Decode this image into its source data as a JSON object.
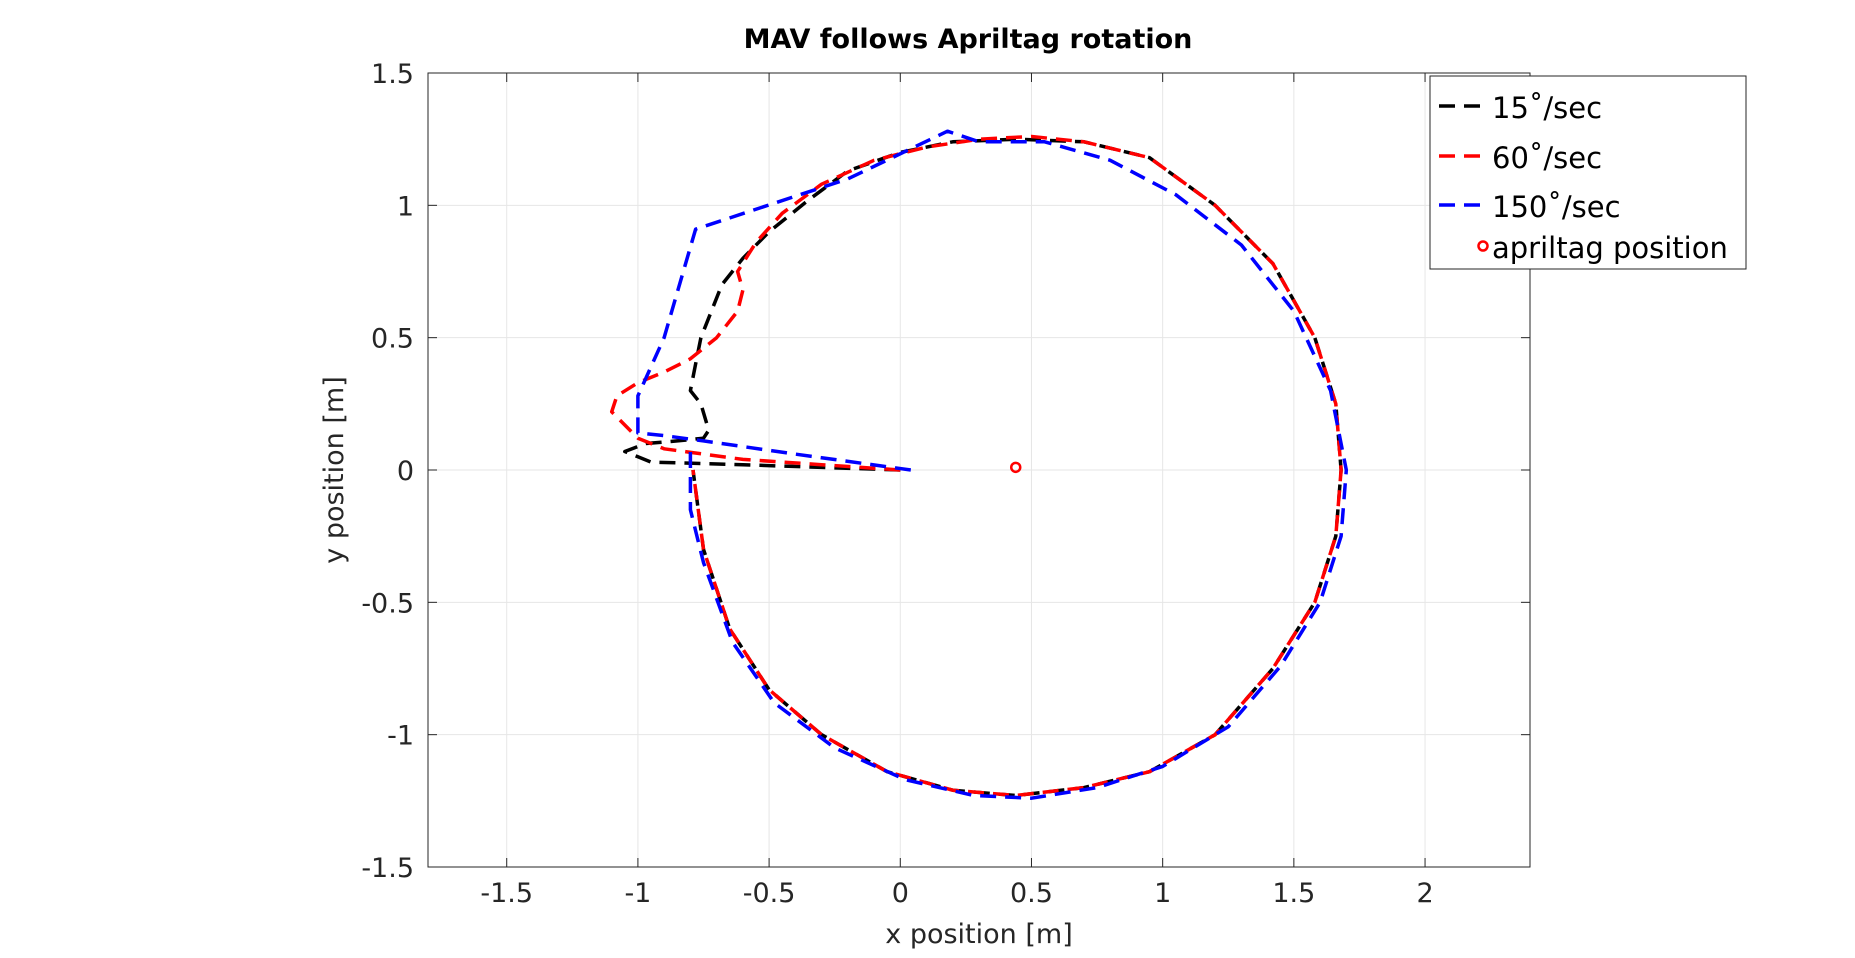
{
  "chart_data": {
    "type": "line",
    "title": "MAV follows Apriltag rotation",
    "xlabel": "x position [m]",
    "ylabel": "y position [m]",
    "xlim": [
      -1.8,
      2.4
    ],
    "ylim": [
      -1.5,
      1.5
    ],
    "xticks": [
      -1.5,
      -1,
      -0.5,
      0,
      0.5,
      1,
      1.5,
      2
    ],
    "xtick_labels": [
      "-1.5",
      "-1",
      "-0.5",
      "0",
      "0.5",
      "1",
      "1.5",
      "2"
    ],
    "yticks": [
      -1.5,
      -1,
      -0.5,
      0,
      0.5,
      1,
      1.5
    ],
    "ytick_labels": [
      "-1.5",
      "-1",
      "-0.5",
      "0",
      "0.5",
      "1",
      "1.5"
    ],
    "grid": true,
    "legend_position": "top-right",
    "series": [
      {
        "name": "15˚/sec",
        "color": "#000000",
        "style": "dashed",
        "x": [
          0.0,
          -0.3,
          -0.6,
          -0.95,
          -1.0,
          -1.05,
          -0.97,
          -0.85,
          -0.75,
          -0.73,
          -0.76,
          -0.8,
          -0.78,
          -0.76,
          -0.72,
          -0.68,
          -0.6,
          -0.5,
          -0.35,
          -0.2,
          0.0,
          0.2,
          0.44,
          0.7,
          0.95,
          1.2,
          1.42,
          1.58,
          1.66,
          1.68,
          1.66,
          1.58,
          1.42,
          1.2,
          0.95,
          0.7,
          0.44,
          0.2,
          -0.05,
          -0.3,
          -0.5,
          -0.65,
          -0.75,
          -0.79
        ],
        "y": [
          0.0,
          0.01,
          0.02,
          0.03,
          0.05,
          0.07,
          0.1,
          0.11,
          0.12,
          0.15,
          0.25,
          0.3,
          0.4,
          0.5,
          0.6,
          0.7,
          0.8,
          0.9,
          1.02,
          1.13,
          1.2,
          1.24,
          1.25,
          1.24,
          1.18,
          1.0,
          0.78,
          0.5,
          0.25,
          0.0,
          -0.25,
          -0.5,
          -0.75,
          -1.0,
          -1.14,
          -1.2,
          -1.23,
          -1.21,
          -1.14,
          -1.0,
          -0.83,
          -0.6,
          -0.3,
          0.0
        ]
      },
      {
        "name": "60˚/sec",
        "color": "#ff0000",
        "style": "dashed",
        "x": [
          0.0,
          -0.3,
          -0.6,
          -0.9,
          -1.0,
          -1.1,
          -1.08,
          -1.0,
          -0.9,
          -0.8,
          -0.7,
          -0.62,
          -0.6,
          -0.62,
          -0.55,
          -0.45,
          -0.3,
          -0.1,
          0.1,
          0.3,
          0.5,
          0.7,
          0.95,
          1.2,
          1.42,
          1.58,
          1.66,
          1.68,
          1.66,
          1.58,
          1.42,
          1.2,
          0.95,
          0.7,
          0.44,
          0.2,
          -0.05,
          -0.3,
          -0.5,
          -0.65,
          -0.75,
          -0.79
        ],
        "y": [
          0.0,
          0.02,
          0.04,
          0.08,
          0.12,
          0.22,
          0.28,
          0.33,
          0.37,
          0.42,
          0.5,
          0.6,
          0.68,
          0.75,
          0.86,
          0.97,
          1.08,
          1.17,
          1.22,
          1.25,
          1.26,
          1.24,
          1.18,
          1.0,
          0.78,
          0.5,
          0.25,
          0.0,
          -0.25,
          -0.5,
          -0.75,
          -1.0,
          -1.14,
          -1.2,
          -1.23,
          -1.21,
          -1.14,
          -1.0,
          -0.83,
          -0.6,
          -0.3,
          0.0
        ]
      },
      {
        "name": "150˚/sec",
        "color": "#0000ff",
        "style": "dashed",
        "x": [
          0.04,
          -0.4,
          -0.75,
          -0.9,
          -1.0,
          -1.0,
          -0.9,
          -0.78,
          -0.2,
          0.18,
          0.3,
          0.55,
          0.8,
          1.05,
          1.3,
          1.5,
          1.64,
          1.7,
          1.68,
          1.6,
          1.45,
          1.25,
          1.0,
          0.75,
          0.5,
          0.28,
          0.02,
          -0.25,
          -0.48,
          -0.64,
          -0.75,
          -0.8,
          -0.8
        ],
        "y": [
          0.0,
          0.06,
          0.11,
          0.13,
          0.14,
          0.28,
          0.5,
          0.91,
          1.1,
          1.28,
          1.24,
          1.24,
          1.17,
          1.04,
          0.85,
          0.6,
          0.3,
          0.0,
          -0.25,
          -0.5,
          -0.74,
          -0.97,
          -1.12,
          -1.2,
          -1.24,
          -1.23,
          -1.17,
          -1.05,
          -0.88,
          -0.65,
          -0.35,
          -0.15,
          0.1
        ]
      }
    ],
    "markers": [
      {
        "name": "apriltag position",
        "color": "#ff0000",
        "shape": "circle-open",
        "x": [
          0.44
        ],
        "y": [
          0.01
        ]
      }
    ]
  }
}
